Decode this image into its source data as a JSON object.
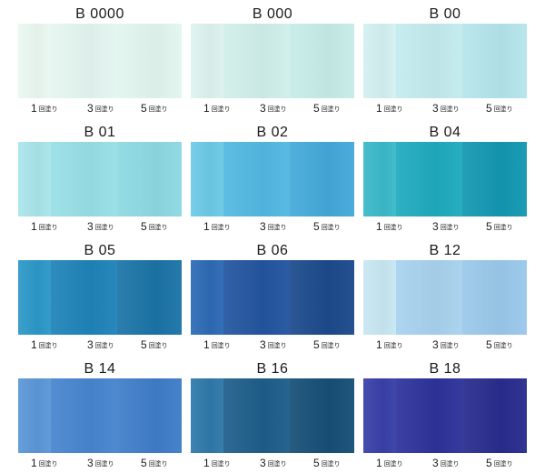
{
  "coat_unit": "回塗り",
  "swatches": [
    {
      "code": "B 0000",
      "coats": [
        "1",
        "3",
        "5"
      ],
      "colors": [
        "#eaf8f2",
        "#e4f6f1",
        "#e2f5ef"
      ]
    },
    {
      "code": "B 000",
      "coats": [
        "1",
        "3",
        "5"
      ],
      "colors": [
        "#ddf3ef",
        "#d0efea",
        "#c6ece7"
      ]
    },
    {
      "code": "B 00",
      "coats": [
        "1",
        "3",
        "5"
      ],
      "colors": [
        "#d3f0f1",
        "#c3ebee",
        "#b4e5eb"
      ]
    },
    {
      "code": "B 01",
      "coats": [
        "1",
        "3",
        "5"
      ],
      "colors": [
        "#a9e5ea",
        "#98dfe6",
        "#8dd9e3"
      ]
    },
    {
      "code": "B 02",
      "coats": [
        "1",
        "3",
        "5"
      ],
      "colors": [
        "#6ccae7",
        "#52b8e1",
        "#44a9d9"
      ]
    },
    {
      "code": "B 04",
      "coats": [
        "1",
        "3",
        "5"
      ],
      "colors": [
        "#3bb9c9",
        "#1faabe",
        "#1398b1"
      ]
    },
    {
      "code": "B 05",
      "coats": [
        "1",
        "3",
        "5"
      ],
      "colors": [
        "#2c98c8",
        "#1f83b8",
        "#1b74a6"
      ]
    },
    {
      "code": "B 06",
      "coats": [
        "1",
        "3",
        "5"
      ],
      "colors": [
        "#2d6bb5",
        "#23559f",
        "#1c4a8c"
      ]
    },
    {
      "code": "B 12",
      "coats": [
        "1",
        "3",
        "5"
      ],
      "colors": [
        "#c8e7f2",
        "#a8d2ee",
        "#9ac8ea"
      ]
    },
    {
      "code": "B 14",
      "coats": [
        "1",
        "3",
        "5"
      ],
      "colors": [
        "#5b97d7",
        "#4785cf",
        "#3f7dc9"
      ]
    },
    {
      "code": "B 16",
      "coats": [
        "1",
        "3",
        "5"
      ],
      "colors": [
        "#2f79aa",
        "#1e5e8a",
        "#174f76"
      ]
    },
    {
      "code": "B 18",
      "coats": [
        "1",
        "3",
        "5"
      ],
      "colors": [
        "#3940a8",
        "#2e329a",
        "#292c8d"
      ]
    }
  ]
}
